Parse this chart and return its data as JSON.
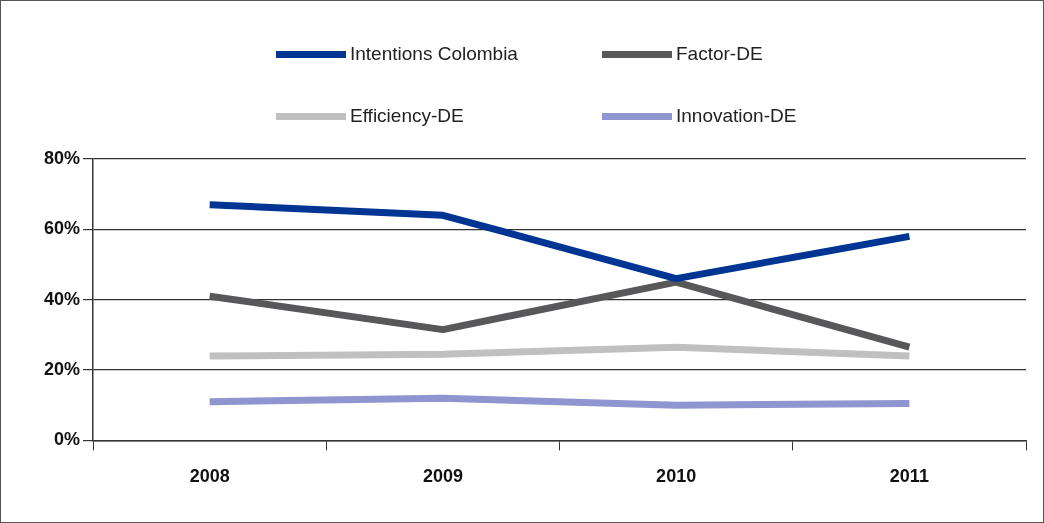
{
  "chart_data": {
    "type": "line",
    "categories": [
      "2008",
      "2009",
      "2010",
      "2011"
    ],
    "series": [
      {
        "name": "Intentions Colombia",
        "color": "#003594",
        "values": [
          67,
          64,
          46,
          58
        ]
      },
      {
        "name": "Factor-DE",
        "color": "#58585a",
        "values": [
          41,
          31.5,
          45,
          26.5
        ]
      },
      {
        "name": "Efficiency-DE",
        "color": "#c0c0c0",
        "values": [
          24,
          24.5,
          26.5,
          24
        ]
      },
      {
        "name": "Innovation-DE",
        "color": "#8f96cf",
        "values": [
          11,
          12,
          10,
          10.5
        ]
      }
    ],
    "ylim": [
      0,
      80
    ],
    "yticks": [
      {
        "value": 0,
        "label": "0%"
      },
      {
        "value": 20,
        "label": "20%"
      },
      {
        "value": 40,
        "label": "40%"
      },
      {
        "value": 60,
        "label": "60%"
      },
      {
        "value": 80,
        "label": "80%"
      }
    ],
    "grid": "y",
    "legend": "top",
    "marker": "none",
    "line_style": "solid"
  }
}
